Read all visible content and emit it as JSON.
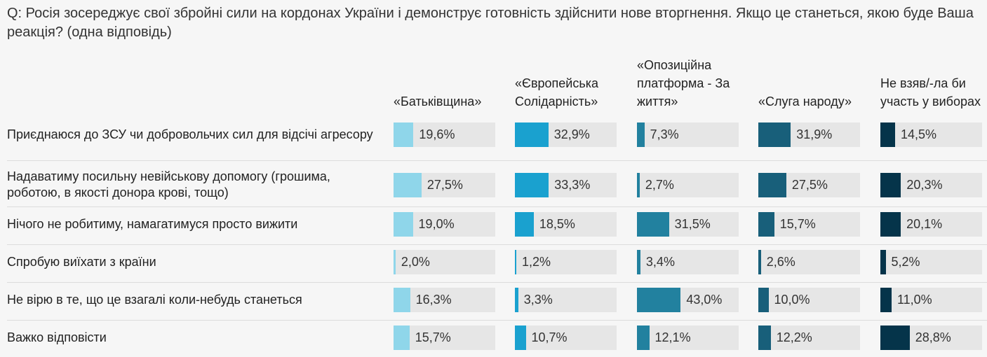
{
  "question": "Q: Росія зосереджує свої збройні сили на кордонах України і демонструє готовність здійснити нове вторгнення. Якщо це станеться, якою буде Ваша реакція? (одна відповідь)",
  "columns": [
    {
      "label": "«Батьківщина»",
      "color": "#8fd6ea"
    },
    {
      "label": "«Європейська Солідарність»",
      "color": "#1aa1cf"
    },
    {
      "label": "«Опозиційна платформа - За життя»",
      "color": "#22819f"
    },
    {
      "label": "«Слуга народу»",
      "color": "#185f7a"
    },
    {
      "label": "Не взяв/-ла би участь у виборах",
      "color": "#05344a"
    }
  ],
  "chart_data": {
    "type": "bar",
    "title": "Q: Росія зосереджує свої збройні сили на кордонах України і демонструє готовність здійснити нове вторгнення. Якщо це станеться, якою буде Ваша реакція? (одна відповідь)",
    "ylim": [
      0,
      100
    ],
    "categories": [
      "Приєднаюся до ЗСУ чи добровольчих сил для відсічі агресору",
      "Надаватиму посильну невійськову допомогу (грошима, роботою, в якості донора крові, тощо)",
      "Нічого не робитиму, намагатимуся просто вижити",
      "Спробую виїхати з країни",
      "Не вірю в те, що це взагалі коли-небудь станеться",
      "Важко відповісти"
    ],
    "series": [
      {
        "name": "«Батьківщина»",
        "values": [
          19.6,
          27.5,
          19.0,
          2.0,
          16.3,
          15.7
        ],
        "labels": [
          "19,6%",
          "27,5%",
          "19,0%",
          "2,0%",
          "16,3%",
          "15,7%"
        ]
      },
      {
        "name": "«Європейська Солідарність»",
        "values": [
          32.9,
          33.3,
          18.5,
          1.2,
          3.3,
          10.7
        ],
        "labels": [
          "32,9%",
          "33,3%",
          "18,5%",
          "1,2%",
          "3,3%",
          "10,7%"
        ]
      },
      {
        "name": "«Опозиційна платформа - За життя»",
        "values": [
          7.3,
          2.7,
          31.5,
          3.4,
          43.0,
          12.1
        ],
        "labels": [
          "7,3%",
          "2,7%",
          "31,5%",
          "3,4%",
          "43,0%",
          "12,1%"
        ]
      },
      {
        "name": "«Слуга народу»",
        "values": [
          31.9,
          27.5,
          15.7,
          2.6,
          10.0,
          12.2
        ],
        "labels": [
          "31,9%",
          "27,5%",
          "15,7%",
          "2,6%",
          "10,0%",
          "12,2%"
        ]
      },
      {
        "name": "Не взяв/-ла би участь у виборах",
        "values": [
          14.5,
          20.3,
          20.1,
          5.2,
          11.0,
          28.8
        ],
        "labels": [
          "14,5%",
          "20,3%",
          "20,1%",
          "5,2%",
          "11,0%",
          "28,8%"
        ]
      }
    ]
  }
}
